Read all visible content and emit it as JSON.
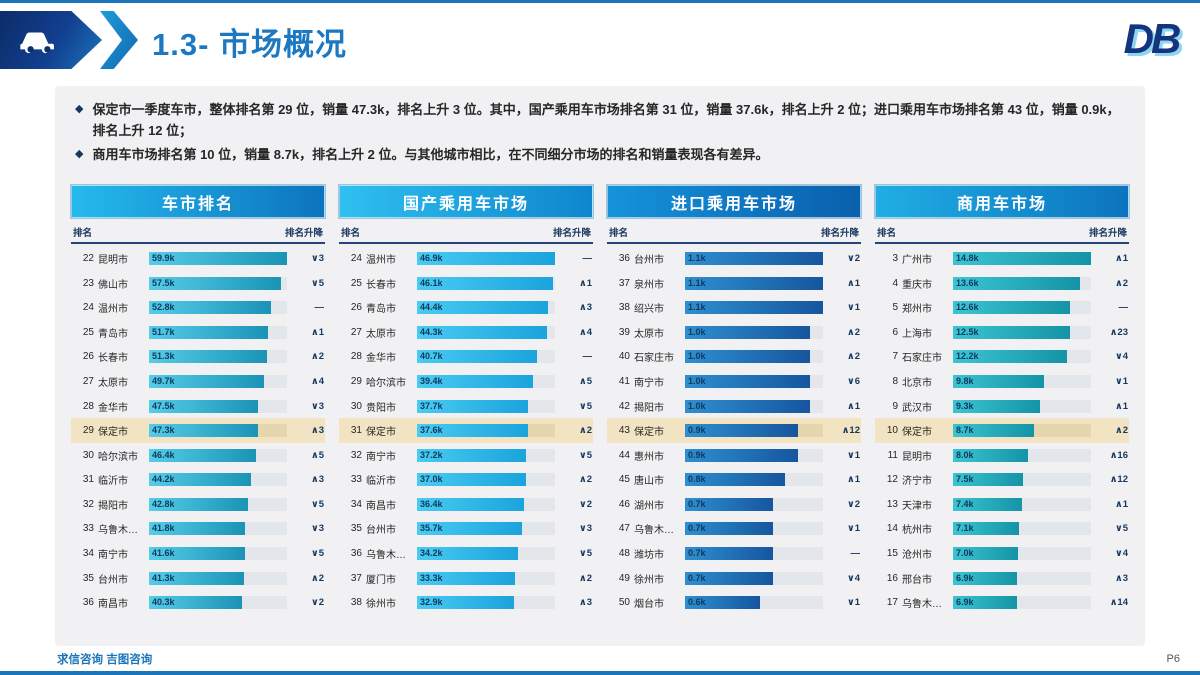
{
  "slide": {
    "title": "1.3- 市场概况",
    "logo_text": "DB",
    "footer_brands": "求信咨询 吉图咨询",
    "page_number": "P6"
  },
  "bullets": [
    "保定市一季度车市，整体排名第 29 位，销量 47.3k，排名上升 3 位。其中，国产乘用车市场排名第 31 位，销量 37.6k，排名上升 2 位；进口乘用车市场排名第 43 位，销量 0.9k，排名上升 12 位；",
    "商用车市场排名第 10 位，销量 8.7k，排名上升 2 位。与其他城市相比，在不同细分市场的排名和销量表现各有差异。"
  ],
  "table_labels": {
    "rank": "排名",
    "rank_change": "排名升降"
  },
  "colors": {
    "accent_blue": "#1B75BB",
    "title_blue": "#1C78C0",
    "dark_navy": "#17375E",
    "highlight_row": "#F2E4C2",
    "card_bg": "#F1F1F3",
    "track_bg": "#E3E6EA"
  },
  "chart_data": [
    {
      "type": "bar",
      "title": "车市排名",
      "unit": "k",
      "highlight_city": "保定市",
      "header_gradient": [
        "#25BAED",
        "#0C74BE"
      ],
      "bar_gradient": [
        "#55CDE8",
        "#1B93B6"
      ],
      "rows": [
        {
          "rank": 22,
          "city": "昆明市",
          "value": "59.9k",
          "change": "∨3"
        },
        {
          "rank": 23,
          "city": "佛山市",
          "value": "57.5k",
          "change": "∨5"
        },
        {
          "rank": 24,
          "city": "温州市",
          "value": "52.8k",
          "change": "—"
        },
        {
          "rank": 25,
          "city": "青岛市",
          "value": "51.7k",
          "change": "∧1"
        },
        {
          "rank": 26,
          "city": "长春市",
          "value": "51.3k",
          "change": "∧2"
        },
        {
          "rank": 27,
          "city": "太原市",
          "value": "49.7k",
          "change": "∧4"
        },
        {
          "rank": 28,
          "city": "金华市",
          "value": "47.5k",
          "change": "∨3"
        },
        {
          "rank": 29,
          "city": "保定市",
          "value": "47.3k",
          "change": "∧3"
        },
        {
          "rank": 30,
          "city": "哈尔滨市",
          "value": "46.4k",
          "change": "∧5"
        },
        {
          "rank": 31,
          "city": "临沂市",
          "value": "44.2k",
          "change": "∧3"
        },
        {
          "rank": 32,
          "city": "揭阳市",
          "value": "42.8k",
          "change": "∨5"
        },
        {
          "rank": 33,
          "city": "乌鲁木…",
          "value": "41.8k",
          "change": "∨3"
        },
        {
          "rank": 34,
          "city": "南宁市",
          "value": "41.6k",
          "change": "∨5"
        },
        {
          "rank": 35,
          "city": "台州市",
          "value": "41.3k",
          "change": "∧2"
        },
        {
          "rank": 36,
          "city": "南昌市",
          "value": "40.3k",
          "change": "∨2"
        }
      ]
    },
    {
      "type": "bar",
      "title": "国产乘用车市场",
      "unit": "k",
      "highlight_city": "保定市",
      "header_gradient": [
        "#2FC0F0",
        "#0E86CC"
      ],
      "bar_gradient": [
        "#49CBF2",
        "#1BA3DC"
      ],
      "rows": [
        {
          "rank": 24,
          "city": "温州市",
          "value": "46.9k",
          "change": "—"
        },
        {
          "rank": 25,
          "city": "长春市",
          "value": "46.1k",
          "change": "∧1"
        },
        {
          "rank": 26,
          "city": "青岛市",
          "value": "44.4k",
          "change": "∧3"
        },
        {
          "rank": 27,
          "city": "太原市",
          "value": "44.3k",
          "change": "∧4"
        },
        {
          "rank": 28,
          "city": "金华市",
          "value": "40.7k",
          "change": "—"
        },
        {
          "rank": 29,
          "city": "哈尔滨市",
          "value": "39.4k",
          "change": "∧5"
        },
        {
          "rank": 30,
          "city": "贵阳市",
          "value": "37.7k",
          "change": "∨5"
        },
        {
          "rank": 31,
          "city": "保定市",
          "value": "37.6k",
          "change": "∧2"
        },
        {
          "rank": 32,
          "city": "南宁市",
          "value": "37.2k",
          "change": "∨5"
        },
        {
          "rank": 33,
          "city": "临沂市",
          "value": "37.0k",
          "change": "∧2"
        },
        {
          "rank": 34,
          "city": "南昌市",
          "value": "36.4k",
          "change": "∨2"
        },
        {
          "rank": 35,
          "city": "台州市",
          "value": "35.7k",
          "change": "∨3"
        },
        {
          "rank": 36,
          "city": "乌鲁木…",
          "value": "34.2k",
          "change": "∨5"
        },
        {
          "rank": 37,
          "city": "厦门市",
          "value": "33.3k",
          "change": "∧2"
        },
        {
          "rank": 38,
          "city": "徐州市",
          "value": "32.9k",
          "change": "∧3"
        }
      ]
    },
    {
      "type": "bar",
      "title": "进口乘用车市场",
      "unit": "k",
      "highlight_city": "保定市",
      "header_gradient": [
        "#1593DB",
        "#0A5FAC"
      ],
      "bar_gradient": [
        "#2E8FD0",
        "#16569E"
      ],
      "rows": [
        {
          "rank": 36,
          "city": "台州市",
          "value": "1.1k",
          "change": "∨2"
        },
        {
          "rank": 37,
          "city": "泉州市",
          "value": "1.1k",
          "change": "∧1"
        },
        {
          "rank": 38,
          "city": "绍兴市",
          "value": "1.1k",
          "change": "∨1"
        },
        {
          "rank": 39,
          "city": "太原市",
          "value": "1.0k",
          "change": "∧2"
        },
        {
          "rank": 40,
          "city": "石家庄市",
          "value": "1.0k",
          "change": "∧2"
        },
        {
          "rank": 41,
          "city": "南宁市",
          "value": "1.0k",
          "change": "∨6"
        },
        {
          "rank": 42,
          "city": "揭阳市",
          "value": "1.0k",
          "change": "∧1"
        },
        {
          "rank": 43,
          "city": "保定市",
          "value": "0.9k",
          "change": "∧12"
        },
        {
          "rank": 44,
          "city": "惠州市",
          "value": "0.9k",
          "change": "∨1"
        },
        {
          "rank": 45,
          "city": "唐山市",
          "value": "0.8k",
          "change": "∧1"
        },
        {
          "rank": 46,
          "city": "湖州市",
          "value": "0.7k",
          "change": "∨2"
        },
        {
          "rank": 47,
          "city": "乌鲁木…",
          "value": "0.7k",
          "change": "∨1"
        },
        {
          "rank": 48,
          "city": "潍坊市",
          "value": "0.7k",
          "change": "—"
        },
        {
          "rank": 49,
          "city": "徐州市",
          "value": "0.7k",
          "change": "∨4"
        },
        {
          "rank": 50,
          "city": "烟台市",
          "value": "0.6k",
          "change": "∨1"
        }
      ]
    },
    {
      "type": "bar",
      "title": "商用车市场",
      "unit": "k",
      "highlight_city": "保定市",
      "header_gradient": [
        "#20AEE4",
        "#0C74BE"
      ],
      "bar_gradient": [
        "#3CC4D2",
        "#1494A6"
      ],
      "rows": [
        {
          "rank": 3,
          "city": "广州市",
          "value": "14.8k",
          "change": "∧1"
        },
        {
          "rank": 4,
          "city": "重庆市",
          "value": "13.6k",
          "change": "∧2"
        },
        {
          "rank": 5,
          "city": "郑州市",
          "value": "12.6k",
          "change": "—"
        },
        {
          "rank": 6,
          "city": "上海市",
          "value": "12.5k",
          "change": "∧23"
        },
        {
          "rank": 7,
          "city": "石家庄市",
          "value": "12.2k",
          "change": "∨4"
        },
        {
          "rank": 8,
          "city": "北京市",
          "value": "9.8k",
          "change": "∨1"
        },
        {
          "rank": 9,
          "city": "武汉市",
          "value": "9.3k",
          "change": "∧1"
        },
        {
          "rank": 10,
          "city": "保定市",
          "value": "8.7k",
          "change": "∧2"
        },
        {
          "rank": 11,
          "city": "昆明市",
          "value": "8.0k",
          "change": "∧16"
        },
        {
          "rank": 12,
          "city": "济宁市",
          "value": "7.5k",
          "change": "∧12"
        },
        {
          "rank": 13,
          "city": "天津市",
          "value": "7.4k",
          "change": "∧1"
        },
        {
          "rank": 14,
          "city": "杭州市",
          "value": "7.1k",
          "change": "∨5"
        },
        {
          "rank": 15,
          "city": "沧州市",
          "value": "7.0k",
          "change": "∨4"
        },
        {
          "rank": 16,
          "city": "邢台市",
          "value": "6.9k",
          "change": "∧3"
        },
        {
          "rank": 17,
          "city": "乌鲁木…",
          "value": "6.9k",
          "change": "∧14"
        }
      ]
    }
  ]
}
